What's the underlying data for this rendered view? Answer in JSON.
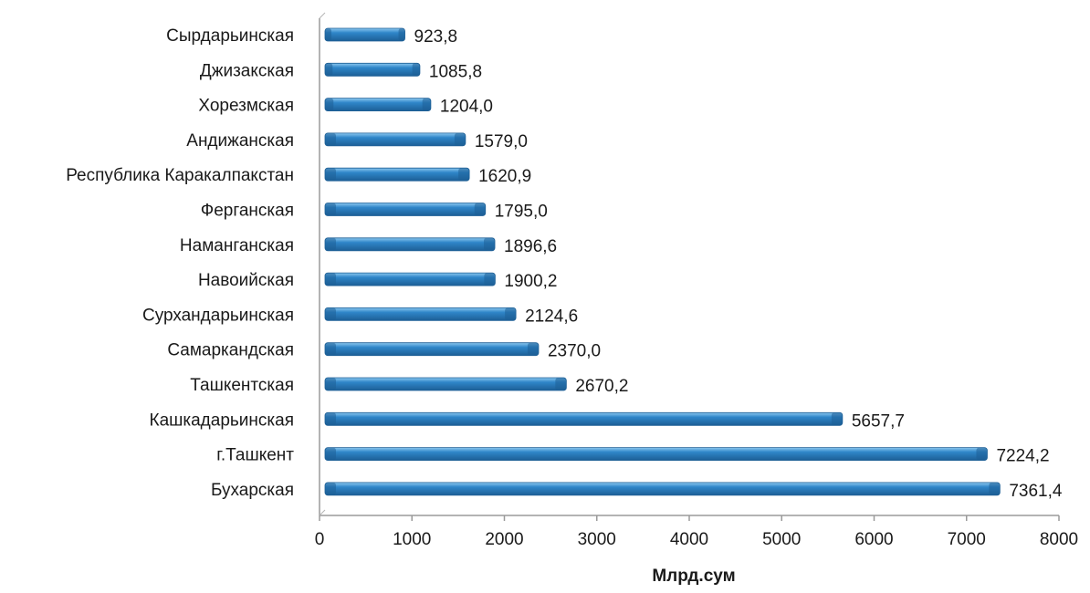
{
  "chart_data": {
    "type": "bar",
    "orientation": "horizontal",
    "title": "",
    "xlabel": "Млрд.сум",
    "ylabel": "",
    "xlim": [
      0,
      8000
    ],
    "xticks": [
      0,
      1000,
      2000,
      3000,
      4000,
      5000,
      6000,
      7000,
      8000
    ],
    "grid": false,
    "legend": "none",
    "bar_color": "#2f86c9",
    "bar_highlight_color": "#8cc8ef",
    "bar_dark_color": "#1d5f96",
    "categories": [
      "Сырдарьинская",
      "Джизакская",
      "Хорезмская",
      "Андижанская",
      "Республика Каракалпакстан",
      "Ферганская",
      "Наманганская",
      "Навоийская",
      "Сурхандарьинская",
      "Самаркандская",
      "Ташкентская",
      "Кашкадарьинская",
      "г.Ташкент",
      "Бухарская"
    ],
    "values": [
      923.8,
      1085.8,
      1204.0,
      1579.0,
      1620.9,
      1795.0,
      1896.6,
      1900.2,
      2124.6,
      2370.0,
      2670.2,
      5657.7,
      7224.2,
      7361.4
    ],
    "value_labels": [
      "923,8",
      "1085,8",
      "1204,0",
      "1579,0",
      "1620,9",
      "1795,0",
      "1896,6",
      "1900,2",
      "2124,6",
      "2370,0",
      "2670,2",
      "5657,7",
      "7224,2",
      "7361,4"
    ]
  }
}
